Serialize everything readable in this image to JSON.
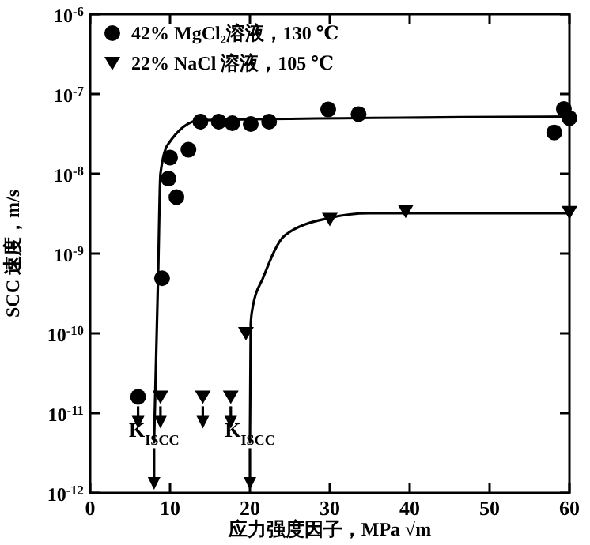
{
  "chart_data": {
    "type": "scatter",
    "xlabel": "应力强度因子，MPa √m",
    "ylabel": "SCC 速度，m/s",
    "log": "y",
    "xlim": [
      0,
      60
    ],
    "xticks": [
      0,
      10,
      20,
      30,
      40,
      50,
      60
    ],
    "ylim": [
      1e-12,
      1e-06
    ],
    "yticks": [
      {
        "value": 1e-12,
        "label": "10$^{-12}$"
      },
      {
        "value": 1e-11,
        "label": "10$^{-11}$"
      },
      {
        "value": 1e-10,
        "label": "10$^{-10}$"
      },
      {
        "value": 1e-09,
        "label": "10$^{-9}$"
      },
      {
        "value": 1e-08,
        "label": "10$^{-8}$"
      },
      {
        "value": 1e-07,
        "label": "10$^{-7}$"
      },
      {
        "value": 1e-06,
        "label": "10$^{-6}$"
      }
    ],
    "grid": false,
    "legend": "top left",
    "series": [
      {
        "name": "42% MgCl₂溶液，130 ℃",
        "marker": "circle",
        "color": "#000000",
        "x": [
          6.0,
          9.0,
          10.8,
          9.8,
          10.0,
          12.3,
          13.8,
          16.1,
          17.8,
          20.1,
          22.4,
          29.8,
          33.6,
          58.1,
          59.3,
          60
        ],
        "values": [
          1.6e-11,
          4.9e-10,
          5.1e-09,
          8.7e-09,
          1.6e-08,
          2e-08,
          4.5e-08,
          4.5e-08,
          4.3e-08,
          4.2e-08,
          4.5e-08,
          6.4e-08,
          5.6e-08,
          3.3e-08,
          6.5e-08,
          5e-08
        ]
      },
      {
        "name": "22% NaCl 溶液，105 ℃",
        "marker": "triangle",
        "color": "#000000",
        "x": [
          8.8,
          14.1,
          17.6,
          19.5,
          30.0,
          39.5,
          60
        ],
        "values": [
          1.6e-11,
          1.6e-11,
          1.6e-11,
          1e-10,
          2.7e-09,
          3.4e-09,
          3.3e-09
        ]
      },
      {
        "type": "line",
        "line_style": "solid",
        "color": "#000000",
        "x": [
          8.0,
          8.5,
          8.8,
          9.7,
          13.8,
          60
        ],
        "values": [
          4.3e-12,
          5e-10,
          1e-08,
          2.3e-08,
          4.7e-08,
          5.2e-08
        ]
      },
      {
        "type": "line",
        "line_style": "solid",
        "color": "#000000",
        "x": [
          20.0,
          20.1,
          20.3,
          21.7,
          24.4,
          30.0,
          34.9,
          60
        ],
        "values": [
          4.3e-12,
          1.3e-10,
          2e-10,
          5.1e-10,
          1.7e-09,
          2.8e-09,
          3.2e-09,
          3.2e-09
        ]
      }
    ],
    "annotations": [
      {
        "text": "K$_{ISCC}$",
        "x": 8,
        "y": 5e-12
      },
      {
        "text": "K$_{ISCC}$",
        "x": 20,
        "y": 5e-12
      }
    ]
  }
}
